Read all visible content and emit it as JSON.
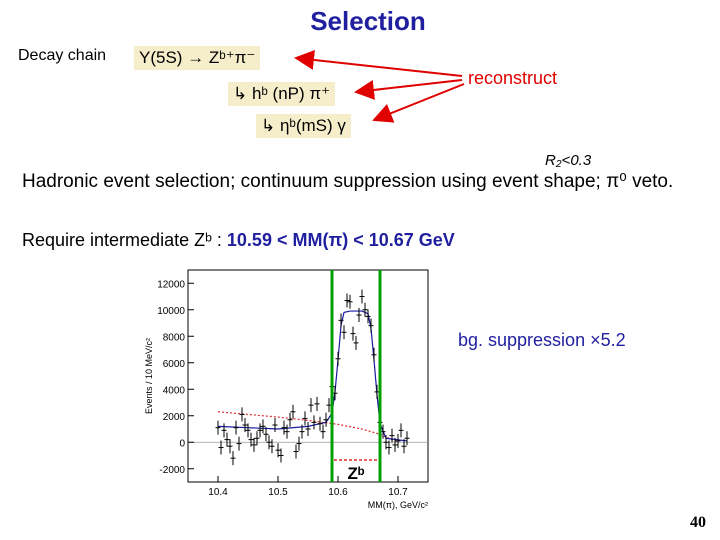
{
  "slide": {
    "title": "Selection",
    "decay_label": "Decay chain",
    "chain": [
      "Υ(5S) → Zᵇ⁺π⁻",
      "↳ hᵇ (nP) π⁺",
      "↳ ηᵇ(mS) γ"
    ],
    "reconstruct": "reconstruct",
    "r2_label": "R₂<0.3",
    "hadronic": "Hadronic event selection; continuum suppression using event shape; π⁰ veto.",
    "require_prefix": "Require intermediate Zᵇ :",
    "mm_range": "10.59 < MM(π) < 10.67 GeV",
    "bg_suppression": "bg. suppression ×5.2",
    "page_number": "40",
    "colors": {
      "title": "#1f1fa0",
      "reconstruct": "#e00000",
      "window": "#00a000",
      "fit": "#1a1aa0",
      "background": "#e03030"
    }
  },
  "chart_data": {
    "type": "scatter",
    "xlabel": "MM(π), GeV/c²",
    "ylabel": "Events / 10 MeV/c²",
    "xlim": [
      10.35,
      10.75
    ],
    "ylim": [
      -3000,
      13000
    ],
    "x_ticks": [
      10.4,
      10.5,
      10.6,
      10.7
    ],
    "y_ticks": [
      -2000,
      0,
      2000,
      4000,
      6000,
      8000,
      10000,
      12000
    ],
    "window": [
      10.59,
      10.67
    ],
    "window_label": "Zᵇ",
    "points": [
      {
        "x": 10.4,
        "y": 1100
      },
      {
        "x": 10.405,
        "y": -400
      },
      {
        "x": 10.41,
        "y": 900
      },
      {
        "x": 10.415,
        "y": 200
      },
      {
        "x": 10.42,
        "y": -300
      },
      {
        "x": 10.425,
        "y": -1200
      },
      {
        "x": 10.43,
        "y": 1100
      },
      {
        "x": 10.435,
        "y": -100
      },
      {
        "x": 10.44,
        "y": 2100
      },
      {
        "x": 10.445,
        "y": 1300
      },
      {
        "x": 10.45,
        "y": 900
      },
      {
        "x": 10.455,
        "y": 200
      },
      {
        "x": 10.46,
        "y": -200
      },
      {
        "x": 10.465,
        "y": 300
      },
      {
        "x": 10.47,
        "y": 900
      },
      {
        "x": 10.475,
        "y": 1200
      },
      {
        "x": 10.48,
        "y": 600
      },
      {
        "x": 10.485,
        "y": 0
      },
      {
        "x": 10.49,
        "y": -300
      },
      {
        "x": 10.495,
        "y": 1300
      },
      {
        "x": 10.5,
        "y": -600
      },
      {
        "x": 10.505,
        "y": -1000
      },
      {
        "x": 10.51,
        "y": 1100
      },
      {
        "x": 10.515,
        "y": 800
      },
      {
        "x": 10.52,
        "y": 1700
      },
      {
        "x": 10.525,
        "y": 2300
      },
      {
        "x": 10.53,
        "y": -700
      },
      {
        "x": 10.535,
        "y": -100
      },
      {
        "x": 10.54,
        "y": 800
      },
      {
        "x": 10.545,
        "y": 1800
      },
      {
        "x": 10.55,
        "y": 1000
      },
      {
        "x": 10.555,
        "y": 2800
      },
      {
        "x": 10.56,
        "y": 1500
      },
      {
        "x": 10.565,
        "y": 2900
      },
      {
        "x": 10.57,
        "y": 1400
      },
      {
        "x": 10.575,
        "y": 800
      },
      {
        "x": 10.58,
        "y": 1700
      },
      {
        "x": 10.585,
        "y": 2800
      },
      {
        "x": 10.59,
        "y": 4200
      },
      {
        "x": 10.595,
        "y": 3700
      },
      {
        "x": 10.6,
        "y": 6300
      },
      {
        "x": 10.605,
        "y": 9200
      },
      {
        "x": 10.61,
        "y": 8300
      },
      {
        "x": 10.615,
        "y": 10700
      },
      {
        "x": 10.62,
        "y": 10600
      },
      {
        "x": 10.625,
        "y": 8200
      },
      {
        "x": 10.63,
        "y": 7500
      },
      {
        "x": 10.635,
        "y": 9600
      },
      {
        "x": 10.64,
        "y": 11000
      },
      {
        "x": 10.645,
        "y": 10000
      },
      {
        "x": 10.65,
        "y": 9500
      },
      {
        "x": 10.655,
        "y": 8800
      },
      {
        "x": 10.66,
        "y": 6600
      },
      {
        "x": 10.665,
        "y": 3800
      },
      {
        "x": 10.67,
        "y": 1500
      },
      {
        "x": 10.675,
        "y": 800
      },
      {
        "x": 10.68,
        "y": 0
      },
      {
        "x": 10.685,
        "y": -400
      },
      {
        "x": 10.69,
        "y": 500
      },
      {
        "x": 10.695,
        "y": -200
      },
      {
        "x": 10.7,
        "y": 100
      },
      {
        "x": 10.705,
        "y": 900
      },
      {
        "x": 10.71,
        "y": -300
      },
      {
        "x": 10.715,
        "y": 300
      }
    ],
    "fit_curve": [
      {
        "x": 10.4,
        "y": 1200
      },
      {
        "x": 10.45,
        "y": 1100
      },
      {
        "x": 10.5,
        "y": 1000
      },
      {
        "x": 10.55,
        "y": 1200
      },
      {
        "x": 10.58,
        "y": 1500
      },
      {
        "x": 10.59,
        "y": 2200
      },
      {
        "x": 10.595,
        "y": 3800
      },
      {
        "x": 10.6,
        "y": 6200
      },
      {
        "x": 10.605,
        "y": 8800
      },
      {
        "x": 10.61,
        "y": 9800
      },
      {
        "x": 10.62,
        "y": 9900
      },
      {
        "x": 10.64,
        "y": 9900
      },
      {
        "x": 10.65,
        "y": 9700
      },
      {
        "x": 10.655,
        "y": 8600
      },
      {
        "x": 10.66,
        "y": 6200
      },
      {
        "x": 10.665,
        "y": 3600
      },
      {
        "x": 10.67,
        "y": 1400
      },
      {
        "x": 10.68,
        "y": 300
      },
      {
        "x": 10.715,
        "y": 100
      }
    ],
    "bg_curve": [
      {
        "x": 10.4,
        "y": 2300
      },
      {
        "x": 10.45,
        "y": 2100
      },
      {
        "x": 10.5,
        "y": 1900
      },
      {
        "x": 10.55,
        "y": 1650
      },
      {
        "x": 10.6,
        "y": 1350
      },
      {
        "x": 10.64,
        "y": 1000
      },
      {
        "x": 10.67,
        "y": 600
      },
      {
        "x": 10.69,
        "y": 200
      },
      {
        "x": 10.7,
        "y": 0
      }
    ]
  }
}
